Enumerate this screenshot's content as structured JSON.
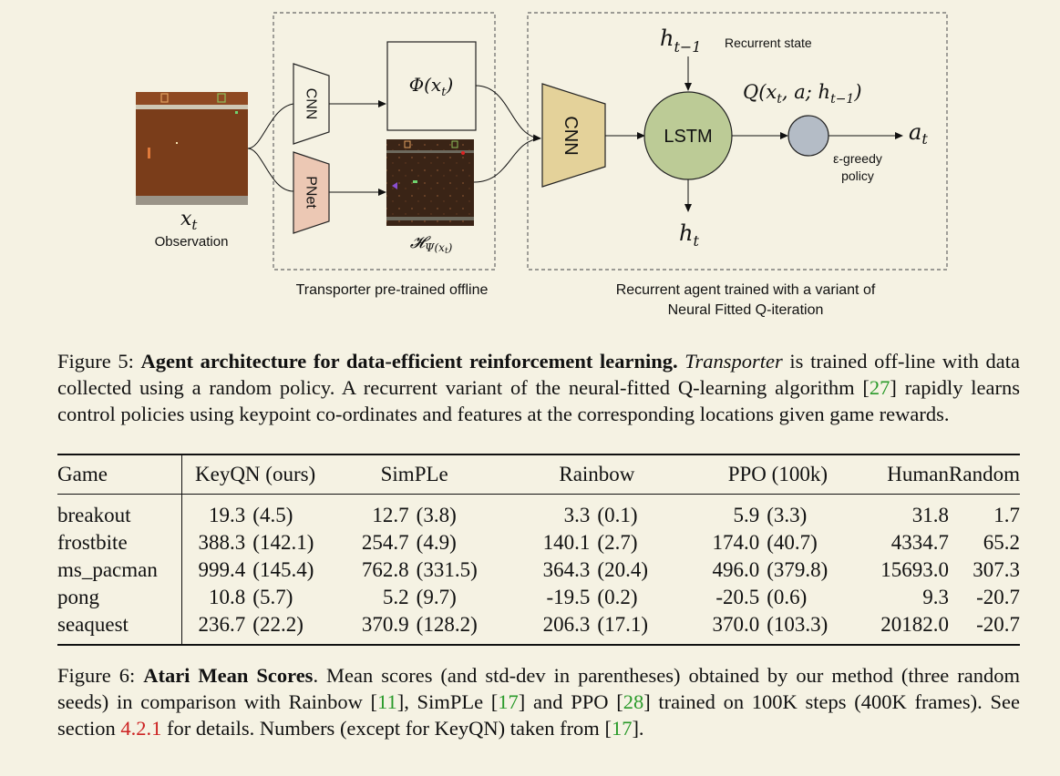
{
  "diagram": {
    "obs_symbol": "x",
    "obs_subscript": "t",
    "obs_label": "Observation",
    "cnn1": "CNN",
    "pnet": "PNet",
    "phi_label": "Φ(x",
    "phi_sub": "t",
    "phi_close": ")",
    "heatmap_label": "𝓗",
    "heatmap_sub": "Ψ(x",
    "heatmap_subsub": "t",
    "heatmap_close": ")",
    "cnn2": "CNN",
    "lstm": "LSTM",
    "h_prev": "h",
    "h_prev_sub": "t−1",
    "recurrent_state": "Recurrent state",
    "h_out": "h",
    "h_out_sub": "t",
    "q_label": "Q(x",
    "q_sub1": "t",
    "q_mid": ", a; h",
    "q_sub2": "t−1",
    "q_close": ")",
    "action": "a",
    "action_sub": "t",
    "policy_line1": "ε-greedy",
    "policy_line2": "policy",
    "box1_caption": "Transporter pre-trained offline",
    "box2_caption_line1": "Recurrent agent trained with a variant of",
    "box2_caption_line2": "Neural Fitted Q-iteration"
  },
  "figure5": {
    "prefix": "Figure 5: ",
    "title": "Agent architecture for data-efficient reinforcement learning.",
    "italic": "Transporter",
    "text1": " is trained off-line with data collected using a random policy. A recurrent variant of the neural-fitted Q-learning algorithm [",
    "ref1": "27",
    "text2": "] rapidly learns control policies using keypoint co-ordinates and features at the corresponding locations given game rewards."
  },
  "table": {
    "headers": [
      "Game",
      "KeyQN (ours)",
      "SimPLe",
      "Rainbow",
      "PPO (100k)",
      "Human",
      "Random"
    ],
    "rows": [
      {
        "game": "breakout",
        "keyqn": "19.3",
        "keyqn_sd": "(4.5)",
        "simple": "12.7",
        "simple_sd": "(3.8)",
        "rainbow": "3.3",
        "rainbow_sd": "(0.1)",
        "ppo": "5.9",
        "ppo_sd": "(3.3)",
        "human": "31.8",
        "random": "1.7"
      },
      {
        "game": "frostbite",
        "keyqn": "388.3",
        "keyqn_sd": "(142.1)",
        "simple": "254.7",
        "simple_sd": "(4.9)",
        "rainbow": "140.1",
        "rainbow_sd": "(2.7)",
        "ppo": "174.0",
        "ppo_sd": "(40.7)",
        "human": "4334.7",
        "random": "65.2"
      },
      {
        "game": "ms_pacman",
        "keyqn": "999.4",
        "keyqn_sd": "(145.4)",
        "simple": "762.8",
        "simple_sd": "(331.5)",
        "rainbow": "364.3",
        "rainbow_sd": "(20.4)",
        "ppo": "496.0",
        "ppo_sd": "(379.8)",
        "human": "15693.0",
        "random": "307.3"
      },
      {
        "game": "pong",
        "keyqn": "10.8",
        "keyqn_sd": "(5.7)",
        "simple": "5.2",
        "simple_sd": "(9.7)",
        "rainbow": "-19.5",
        "rainbow_sd": "(0.2)",
        "ppo": "-20.5",
        "ppo_sd": "(0.6)",
        "human": "9.3",
        "random": "-20.7"
      },
      {
        "game": "seaquest",
        "keyqn": "236.7",
        "keyqn_sd": "(22.2)",
        "simple": "370.9",
        "simple_sd": "(128.2)",
        "rainbow": "206.3",
        "rainbow_sd": "(17.1)",
        "ppo": "370.0",
        "ppo_sd": "(103.3)",
        "human": "20182.0",
        "random": "-20.7"
      }
    ]
  },
  "figure6": {
    "prefix": "Figure 6: ",
    "title": "Atari Mean Scores",
    "text1": ". Mean scores (and std-dev in parentheses) obtained by our method (three random seeds) in comparison with Rainbow [",
    "ref1": "11",
    "text2": "], SimPLe [",
    "ref2": "17",
    "text3": "] and PPO [",
    "ref3": "28",
    "text4": "] trained on 100K steps (400K frames). See section ",
    "sec": "4.2.1",
    "text5": " for details. Numbers (except for KeyQN) taken from [",
    "ref4": "17",
    "text6": "]."
  },
  "colors": {
    "background": "#f5f2e3",
    "cnn_fill": "#e4d29a",
    "pnet_fill": "#ecc8b4",
    "lstm_fill": "#bccb96",
    "q_node_fill": "#b4bcc6",
    "game_bg": "#7a3d1a",
    "citation_green": "#2a9a2a",
    "section_red": "#cc2222"
  }
}
